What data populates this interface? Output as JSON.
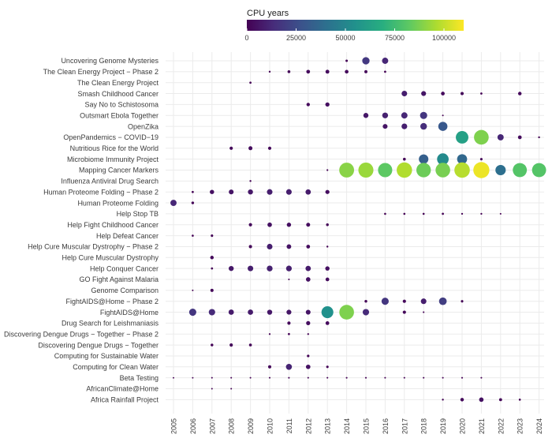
{
  "chart_data": {
    "type": "scatter",
    "title": "",
    "xlabel": "",
    "ylabel": "",
    "legend": {
      "title": "CPU years",
      "position": "top",
      "min": 0,
      "max": 110000,
      "ticks": [
        0,
        25000,
        50000,
        75000,
        100000
      ],
      "tick_labels": [
        "0",
        "25000",
        "50000",
        "75000",
        "100000"
      ],
      "palette": "viridis"
    },
    "years": [
      2005,
      2006,
      2007,
      2008,
      2009,
      2010,
      2011,
      2012,
      2013,
      2014,
      2015,
      2016,
      2017,
      2018,
      2019,
      2020,
      2021,
      2022,
      2023,
      2024
    ],
    "projects": [
      {
        "name": "Uncovering Genome Mysteries",
        "points": [
          [
            2014,
            600
          ],
          [
            2015,
            18000
          ],
          [
            2016,
            12000
          ]
        ]
      },
      {
        "name": "The Clean Energy Project − Phase 2",
        "points": [
          [
            2010,
            200
          ],
          [
            2011,
            1200
          ],
          [
            2012,
            3000
          ],
          [
            2013,
            3200
          ],
          [
            2014,
            2800
          ],
          [
            2015,
            1600
          ],
          [
            2016,
            400
          ]
        ]
      },
      {
        "name": "The Clean Energy Project",
        "points": [
          [
            2009,
            400
          ]
        ]
      },
      {
        "name": "Smash Childhood Cancer",
        "points": [
          [
            2017,
            9000
          ],
          [
            2018,
            6500
          ],
          [
            2019,
            3000
          ],
          [
            2020,
            1800
          ],
          [
            2021,
            400
          ],
          [
            2023,
            2500
          ]
        ]
      },
      {
        "name": "Say No to Schistosoma",
        "points": [
          [
            2012,
            2300
          ],
          [
            2013,
            4200
          ]
        ]
      },
      {
        "name": "Outsmart Ebola Together",
        "points": [
          [
            2015,
            7000
          ],
          [
            2016,
            10000
          ],
          [
            2017,
            12000
          ],
          [
            2018,
            17000
          ],
          [
            2019,
            40
          ]
        ]
      },
      {
        "name": "OpenZika",
        "points": [
          [
            2016,
            6000
          ],
          [
            2017,
            9500
          ],
          [
            2018,
            14000
          ],
          [
            2019,
            30000
          ]
        ]
      },
      {
        "name": "OpenPandemics − COVID−19",
        "points": [
          [
            2020,
            62000
          ],
          [
            2021,
            88000
          ],
          [
            2022,
            12000
          ],
          [
            2023,
            3000
          ],
          [
            2024,
            200
          ]
        ]
      },
      {
        "name": "Nutritious Rice for the World",
        "points": [
          [
            2008,
            2000
          ],
          [
            2009,
            3500
          ],
          [
            2010,
            2000
          ]
        ]
      },
      {
        "name": "Microbiome Immunity Project",
        "points": [
          [
            2017,
            1200
          ],
          [
            2018,
            33000
          ],
          [
            2019,
            52000
          ],
          [
            2020,
            37000
          ],
          [
            2021,
            700
          ]
        ]
      },
      {
        "name": "Mapping Cancer Markers",
        "points": [
          [
            2013,
            100
          ],
          [
            2014,
            90000
          ],
          [
            2015,
            93000
          ],
          [
            2016,
            82000
          ],
          [
            2017,
            97000
          ],
          [
            2018,
            85000
          ],
          [
            2019,
            87000
          ],
          [
            2020,
            98000
          ],
          [
            2021,
            107000
          ],
          [
            2022,
            40000
          ],
          [
            2023,
            80000
          ],
          [
            2024,
            80000
          ]
        ]
      },
      {
        "name": "Influenza Antiviral Drug Search",
        "points": [
          [
            2009,
            200
          ]
        ]
      },
      {
        "name": "Human Proteome Folding − Phase 2",
        "points": [
          [
            2006,
            400
          ],
          [
            2007,
            4500
          ],
          [
            2008,
            6000
          ],
          [
            2009,
            7000
          ],
          [
            2010,
            9000
          ],
          [
            2011,
            9000
          ],
          [
            2012,
            8000
          ],
          [
            2013,
            4000
          ]
        ]
      },
      {
        "name": "Human Proteome Folding",
        "points": [
          [
            2005,
            12000
          ],
          [
            2006,
            1000
          ]
        ]
      },
      {
        "name": "Help Stop TB",
        "points": [
          [
            2016,
            300
          ],
          [
            2017,
            300
          ],
          [
            2018,
            300
          ],
          [
            2019,
            400
          ],
          [
            2020,
            150
          ],
          [
            2021,
            150
          ],
          [
            2022,
            60
          ]
        ]
      },
      {
        "name": "Help Fight Childhood Cancer",
        "points": [
          [
            2009,
            2000
          ],
          [
            2010,
            5000
          ],
          [
            2011,
            4500
          ],
          [
            2012,
            3500
          ],
          [
            2013,
            1000
          ]
        ]
      },
      {
        "name": "Help Defeat Cancer",
        "points": [
          [
            2006,
            300
          ],
          [
            2007,
            700
          ]
        ]
      },
      {
        "name": "Help Cure Muscular Dystrophy − Phase 2",
        "points": [
          [
            2009,
            1800
          ],
          [
            2010,
            9000
          ],
          [
            2011,
            5500
          ],
          [
            2012,
            3000
          ],
          [
            2013,
            200
          ]
        ]
      },
      {
        "name": "Help Cure Muscular Dystrophy",
        "points": [
          [
            2007,
            2500
          ]
        ]
      },
      {
        "name": "Help Conquer Cancer",
        "points": [
          [
            2007,
            400
          ],
          [
            2008,
            7000
          ],
          [
            2009,
            9000
          ],
          [
            2010,
            10000
          ],
          [
            2011,
            9500
          ],
          [
            2012,
            8000
          ],
          [
            2013,
            4500
          ]
        ]
      },
      {
        "name": "GO Fight Against Malaria",
        "points": [
          [
            2011,
            60
          ],
          [
            2012,
            5000
          ],
          [
            2013,
            3000
          ]
        ]
      },
      {
        "name": "Genome Comparison",
        "points": [
          [
            2006,
            40
          ],
          [
            2007,
            1800
          ]
        ]
      },
      {
        "name": "FightAIDS@Home − Phase 2",
        "points": [
          [
            2015,
            1000
          ],
          [
            2016,
            17000
          ],
          [
            2017,
            2000
          ],
          [
            2018,
            9000
          ],
          [
            2019,
            20000
          ],
          [
            2020,
            700
          ]
        ]
      },
      {
        "name": "FightAIDS@Home",
        "points": [
          [
            2006,
            17000
          ],
          [
            2007,
            13000
          ],
          [
            2008,
            8000
          ],
          [
            2009,
            8000
          ],
          [
            2010,
            7000
          ],
          [
            2011,
            6500
          ],
          [
            2012,
            6000
          ],
          [
            2013,
            55000
          ],
          [
            2014,
            88000
          ],
          [
            2015,
            13000
          ],
          [
            2017,
            2000
          ],
          [
            2018,
            80
          ]
        ]
      },
      {
        "name": "Drug Search for Leishmaniasis",
        "points": [
          [
            2011,
            2000
          ],
          [
            2012,
            4000
          ],
          [
            2013,
            3000
          ]
        ]
      },
      {
        "name": "Discovering Dengue Drugs − Together − Phase 2",
        "points": [
          [
            2010,
            100
          ],
          [
            2011,
            400
          ],
          [
            2012,
            150
          ]
        ]
      },
      {
        "name": "Discovering Dengue Drugs − Together",
        "points": [
          [
            2007,
            1000
          ],
          [
            2008,
            2000
          ],
          [
            2009,
            1200
          ]
        ]
      },
      {
        "name": "Computing for Sustainable Water",
        "points": [
          [
            2012,
            800
          ]
        ]
      },
      {
        "name": "Computing for Clean Water",
        "points": [
          [
            2010,
            1800
          ],
          [
            2011,
            11000
          ],
          [
            2012,
            5000
          ],
          [
            2013,
            700
          ]
        ]
      },
      {
        "name": "Beta Testing",
        "points": [
          [
            2005,
            30
          ],
          [
            2006,
            30
          ],
          [
            2007,
            40
          ],
          [
            2008,
            40
          ],
          [
            2009,
            40
          ],
          [
            2010,
            60
          ],
          [
            2011,
            80
          ],
          [
            2012,
            60
          ],
          [
            2013,
            60
          ],
          [
            2014,
            80
          ],
          [
            2015,
            80
          ],
          [
            2016,
            60
          ],
          [
            2017,
            60
          ],
          [
            2018,
            60
          ],
          [
            2019,
            60
          ],
          [
            2020,
            80
          ],
          [
            2021,
            60
          ]
        ]
      },
      {
        "name": "AfricanClimate@Home",
        "points": [
          [
            2007,
            30
          ],
          [
            2008,
            40
          ]
        ]
      },
      {
        "name": "Africa Rainfall Project",
        "points": [
          [
            2019,
            200
          ],
          [
            2020,
            2500
          ],
          [
            2021,
            5000
          ],
          [
            2022,
            1500
          ],
          [
            2023,
            300
          ]
        ]
      }
    ]
  }
}
